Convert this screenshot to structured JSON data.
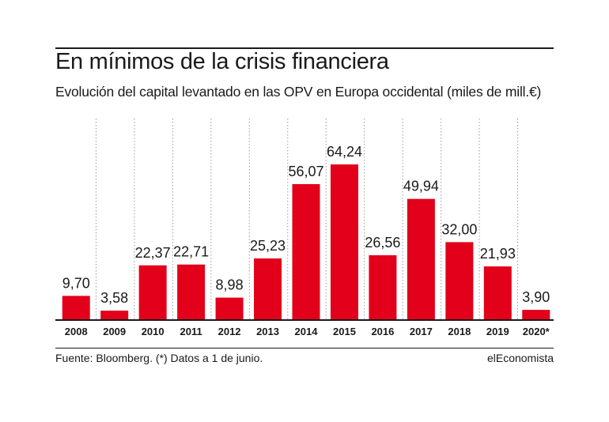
{
  "header": {
    "title": "En mínimos de la crisis financiera",
    "subtitle": "Evolución del capital levantado en las OPV en Europa occidental (miles de mill.€)"
  },
  "footer": {
    "source": "Fuente: Bloomberg. (*) Datos a 1 de junio.",
    "brand": "elEconomista"
  },
  "colors": {
    "bar": "#e2001a",
    "gridline": "#9a9a9a",
    "axis": "#1a1a1a"
  },
  "chart_data": {
    "type": "bar",
    "categories": [
      "2008",
      "2009",
      "2010",
      "2011",
      "2012",
      "2013",
      "2014",
      "2015",
      "2016",
      "2017",
      "2018",
      "2019",
      "2020*"
    ],
    "values": [
      9.7,
      3.58,
      22.37,
      22.71,
      8.98,
      25.23,
      56.07,
      64.24,
      26.56,
      49.94,
      32.0,
      21.93,
      3.9
    ],
    "value_labels": [
      "9,70",
      "3,58",
      "22,37",
      "22,71",
      "8,98",
      "25,23",
      "56,07",
      "64,24",
      "26,56",
      "49,94",
      "32,00",
      "21,93",
      "3,90"
    ],
    "ylim": [
      0,
      85
    ],
    "grid": "vertical-dotted",
    "legend": "none"
  }
}
